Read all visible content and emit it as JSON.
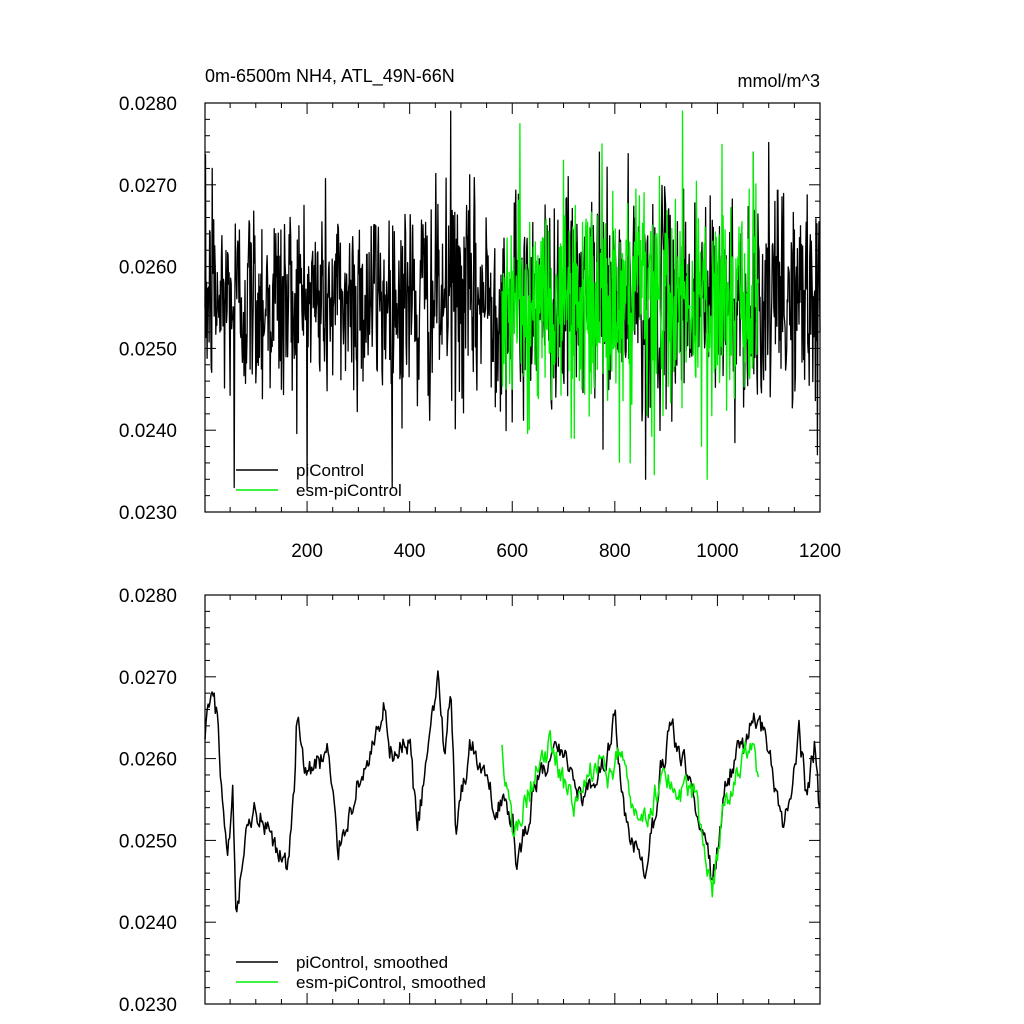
{
  "chart_data": [
    {
      "type": "line",
      "title": "0m-6500m NH4, ATL_49N-66N",
      "units": "mmol/m^3",
      "xlabel": "",
      "ylabel": "",
      "xlim": [
        1,
        1200
      ],
      "ylim": [
        0.023,
        0.028
      ],
      "xticks": [
        200,
        400,
        600,
        800,
        1000,
        1200
      ],
      "xtick_labels": [
        "200",
        "400",
        "600",
        "800",
        "1000",
        "1200"
      ],
      "yticks": [
        0.023,
        0.024,
        0.025,
        0.026,
        0.027,
        0.028
      ],
      "ytick_labels": [
        "0.0230",
        "0.0240",
        "0.0250",
        "0.0260",
        "0.0270",
        "0.0280"
      ],
      "legend_position": "bottom-left",
      "series": [
        {
          "name": "piControl",
          "color": "#000000",
          "x_range": [
            1,
            1200
          ],
          "mean": 0.0256,
          "sd": 0.00075,
          "key_points": [
            [
              1,
              0.0255
            ],
            [
              15,
              0.0272
            ],
            [
              30,
              0.0252
            ],
            [
              58,
              0.0232
            ],
            [
              150,
              0.0245
            ],
            [
              300,
              0.0262
            ],
            [
              415,
              0.0243
            ],
            [
              480,
              0.0279
            ],
            [
              580,
              0.0258
            ],
            [
              600,
              0.0241
            ],
            [
              770,
              0.0274
            ],
            [
              860,
              0.0234
            ],
            [
              1070,
              0.0274
            ],
            [
              1195,
              0.0237
            ],
            [
              1200,
              0.0252
            ]
          ]
        },
        {
          "name": "esm-piControl",
          "color": "#00ee00",
          "x_range": [
            580,
            1080
          ],
          "mean": 0.0255,
          "sd": 0.00075,
          "key_points": [
            [
              580,
              0.0257
            ],
            [
              600,
              0.0245
            ],
            [
              700,
              0.0273
            ],
            [
              775,
              0.0275
            ],
            [
              830,
              0.0236
            ],
            [
              900,
              0.0264
            ],
            [
              980,
              0.0234
            ],
            [
              1000,
              0.0248
            ],
            [
              1070,
              0.0274
            ],
            [
              1080,
              0.0258
            ]
          ]
        }
      ]
    },
    {
      "type": "line",
      "title": "",
      "units": "",
      "xlabel": "",
      "ylabel": "",
      "xlim": [
        1,
        1200
      ],
      "ylim": [
        0.023,
        0.028
      ],
      "xticks": [
        200,
        400,
        600,
        800,
        1000,
        1200
      ],
      "xtick_labels": [],
      "yticks": [
        0.023,
        0.024,
        0.025,
        0.026,
        0.027,
        0.028
      ],
      "ytick_labels": [
        "0.0230",
        "0.0240",
        "0.0250",
        "0.0260",
        "0.0270",
        "0.0280"
      ],
      "legend_position": "bottom-left",
      "series": [
        {
          "name": "piControl, smoothed",
          "color": "#000000",
          "x_range": [
            1,
            1200
          ],
          "key_points": [
            [
              1,
              0.0262
            ],
            [
              10,
              0.0267
            ],
            [
              25,
              0.0265
            ],
            [
              35,
              0.0255
            ],
            [
              45,
              0.0246
            ],
            [
              55,
              0.0255
            ],
            [
              62,
              0.0239
            ],
            [
              75,
              0.0248
            ],
            [
              100,
              0.0254
            ],
            [
              140,
              0.0248
            ],
            [
              160,
              0.0247
            ],
            [
              175,
              0.0255
            ],
            [
              180,
              0.0265
            ],
            [
              200,
              0.0258
            ],
            [
              240,
              0.0261
            ],
            [
              260,
              0.0249
            ],
            [
              300,
              0.0257
            ],
            [
              340,
              0.0263
            ],
            [
              350,
              0.0266
            ],
            [
              360,
              0.026
            ],
            [
              400,
              0.0262
            ],
            [
              415,
              0.0251
            ],
            [
              440,
              0.0263
            ],
            [
              455,
              0.027
            ],
            [
              470,
              0.026
            ],
            [
              480,
              0.027
            ],
            [
              490,
              0.0252
            ],
            [
              520,
              0.0262
            ],
            [
              560,
              0.0255
            ],
            [
              580,
              0.0255
            ],
            [
              600,
              0.0252
            ],
            [
              610,
              0.0247
            ],
            [
              650,
              0.0258
            ],
            [
              700,
              0.0261
            ],
            [
              740,
              0.0255
            ],
            [
              780,
              0.026
            ],
            [
              800,
              0.0265
            ],
            [
              820,
              0.0252
            ],
            [
              860,
              0.0245
            ],
            [
              890,
              0.0259
            ],
            [
              910,
              0.0264
            ],
            [
              950,
              0.0256
            ],
            [
              980,
              0.0251
            ],
            [
              990,
              0.0244
            ],
            [
              1020,
              0.0258
            ],
            [
              1050,
              0.0261
            ],
            [
              1075,
              0.0265
            ],
            [
              1100,
              0.0262
            ],
            [
              1130,
              0.0251
            ],
            [
              1160,
              0.0264
            ],
            [
              1175,
              0.0254
            ],
            [
              1190,
              0.0262
            ],
            [
              1200,
              0.0252
            ]
          ]
        },
        {
          "name": "esm-piControl, smoothed",
          "color": "#00ee00",
          "x_range": [
            580,
            1080
          ],
          "key_points": [
            [
              580,
              0.0261
            ],
            [
              600,
              0.0251
            ],
            [
              620,
              0.0254
            ],
            [
              650,
              0.0259
            ],
            [
              680,
              0.0262
            ],
            [
              700,
              0.0257
            ],
            [
              720,
              0.0255
            ],
            [
              745,
              0.0258
            ],
            [
              770,
              0.0259
            ],
            [
              790,
              0.0257
            ],
            [
              810,
              0.0261
            ],
            [
              830,
              0.0254
            ],
            [
              860,
              0.0252
            ],
            [
              880,
              0.0256
            ],
            [
              900,
              0.0259
            ],
            [
              920,
              0.0256
            ],
            [
              960,
              0.0255
            ],
            [
              980,
              0.0246
            ],
            [
              990,
              0.0244
            ],
            [
              1010,
              0.0253
            ],
            [
              1040,
              0.0258
            ],
            [
              1060,
              0.0262
            ],
            [
              1080,
              0.0258
            ]
          ]
        }
      ]
    }
  ]
}
